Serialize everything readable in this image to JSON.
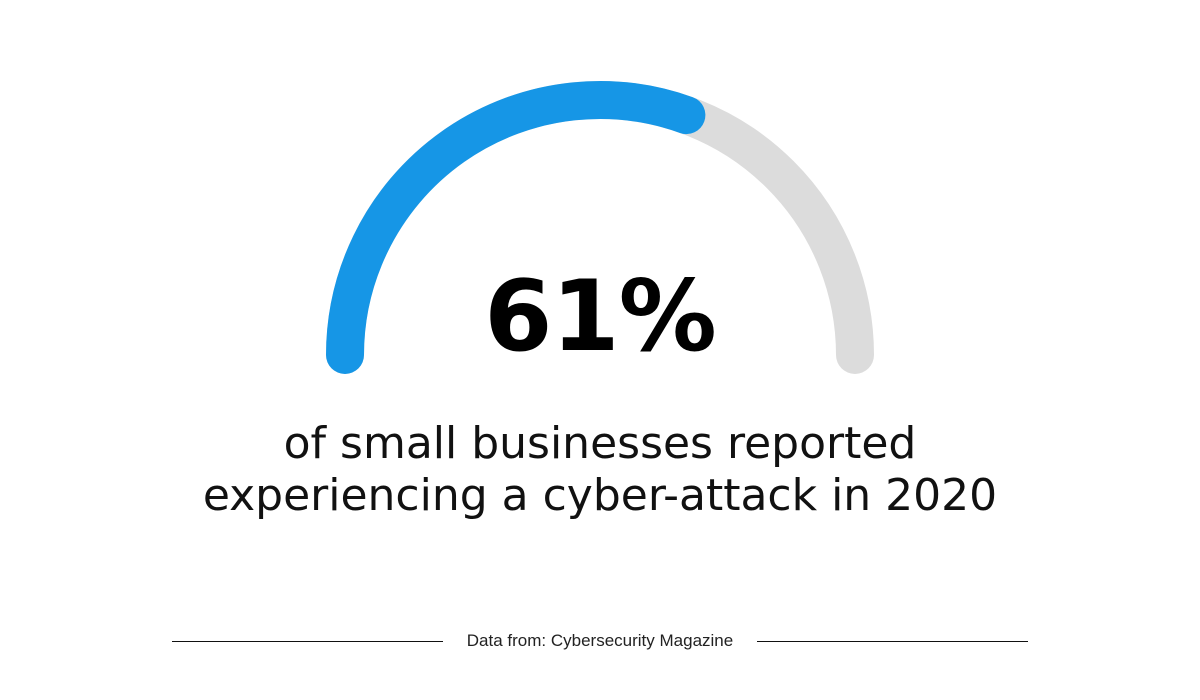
{
  "chart_data": {
    "type": "gauge",
    "value": 61,
    "max": 100,
    "unit": "%",
    "value_label": "61%",
    "caption_lines": [
      "of small businesses reported",
      "experiencing a cyber-attack in 2020"
    ],
    "source": "Data from: Cybersecurity Magazine",
    "colors": {
      "filled": "#1696e6",
      "track": "#dcdcdc",
      "text": "#000000"
    }
  }
}
